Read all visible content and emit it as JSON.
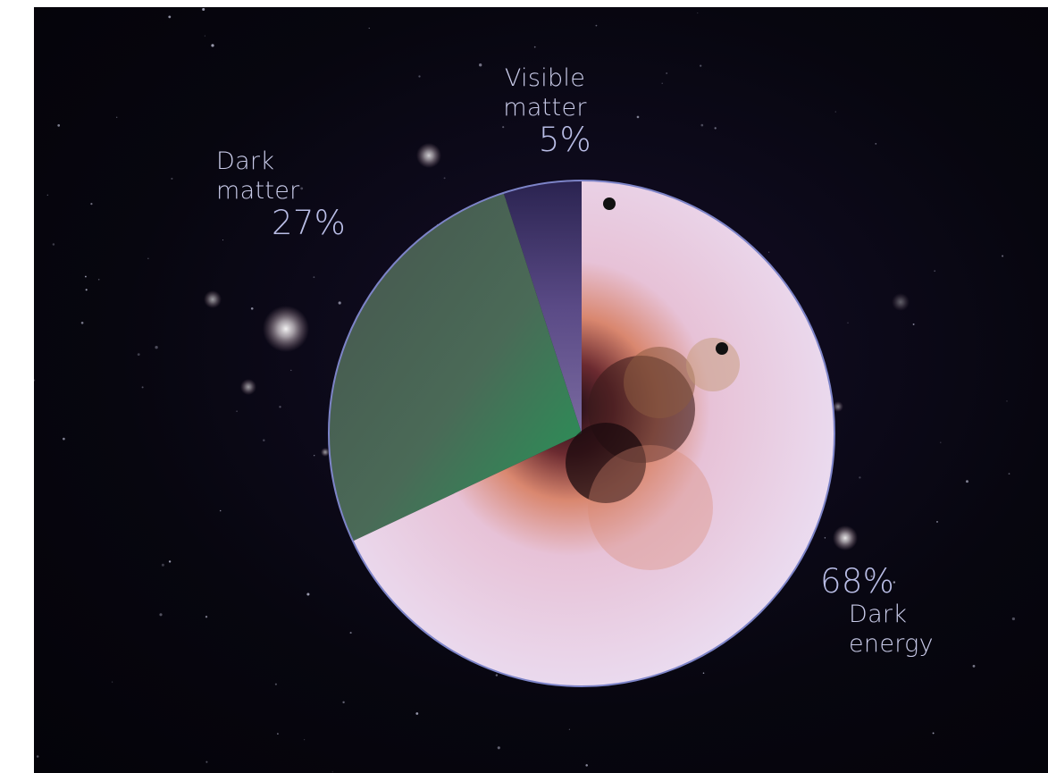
{
  "chart_data": {
    "type": "pie",
    "slices": [
      {
        "label_line1": "Visible",
        "label_line2": "matter",
        "value": 5,
        "percent_label": "5%",
        "color": "#3a2f66"
      },
      {
        "label_line1": "Dark",
        "label_line2": "matter",
        "value": 27,
        "percent_label": "27%",
        "color": "#3c5a46"
      },
      {
        "label_line1": "Dark",
        "label_line2": "energy",
        "value": 68,
        "percent_label": "68%",
        "color": "#e6d9f2"
      }
    ]
  },
  "colors": {
    "background": "#07060f",
    "label_text": "#c9cbe9",
    "pie_outline": "#7d84c8"
  }
}
